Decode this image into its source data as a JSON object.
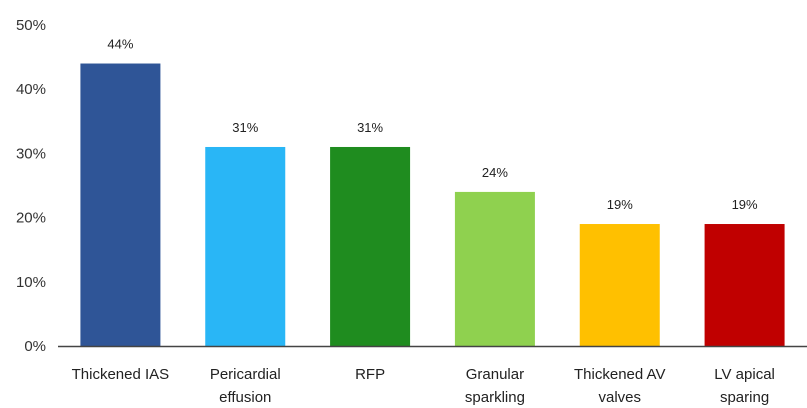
{
  "chart_data": {
    "type": "bar",
    "categories": [
      [
        "Thickened IAS"
      ],
      [
        "Pericardial",
        "effusion"
      ],
      [
        "RFP"
      ],
      [
        "Granular",
        "sparkling"
      ],
      [
        "Thickened AV",
        "valves"
      ],
      [
        "LV apical",
        "sparing"
      ]
    ],
    "values": [
      44,
      31,
      31,
      24,
      19,
      19
    ],
    "value_labels": [
      "44%",
      "31%",
      "31%",
      "24%",
      "19%",
      "19%"
    ],
    "colors": [
      "#2f5597",
      "#29b6f6",
      "#1f8c1f",
      "#8fd14f",
      "#ffc000",
      "#c00000"
    ],
    "y_ticks": [
      "0%",
      "10%",
      "20%",
      "30%",
      "40%",
      "50%"
    ],
    "ylim": [
      0,
      50
    ],
    "grid": false,
    "legend": "none"
  }
}
